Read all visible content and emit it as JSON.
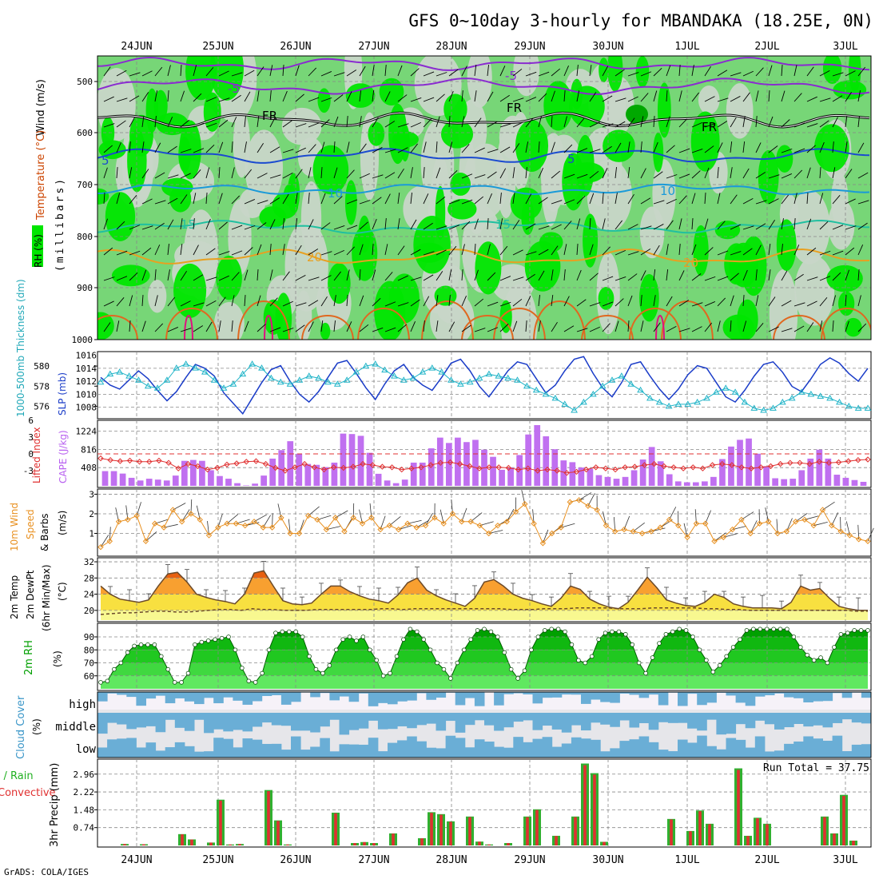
{
  "title": "GFS 0~10day 3-hourly for MBANDAKA (18.25E, 0N)",
  "credit": "GrADS: COLA/IGES",
  "dates": [
    "24JUN",
    "25JUN",
    "26JUN",
    "27JUN",
    "28JUN",
    "29JUN",
    "30JUN",
    "1JUL",
    "2JUL",
    "3JUL"
  ],
  "colors": {
    "rh_dark": "#00e600",
    "rh_mid": "#77d677",
    "rh_light": "#c8d6c8",
    "frame": "#000000",
    "grid": "#888888"
  },
  "panels": {
    "upper": {
      "label_wind": "Wind (m/s)",
      "label_temp": "Temperature (°C)",
      "label_rh": "RH (%)",
      "label_mb": "(millibars)",
      "y_ticks": [
        "500",
        "600",
        "700",
        "800",
        "900",
        "1000"
      ]
    },
    "thickness": {
      "label_thk": "1000-500mb Thickness (dm)",
      "label_slp": "SLP (mb)",
      "thk_ticks": [
        "580",
        "578",
        "576"
      ],
      "slp_ticks": [
        "1016",
        "1014",
        "1012",
        "1010",
        "1008"
      ]
    },
    "cape": {
      "label_li": "Lifted Index",
      "label_cape": "CAPE (J/kg)",
      "li_ticks": [
        "-3",
        "0",
        "3",
        "6"
      ],
      "cape_ticks": [
        "1224",
        "816",
        "408"
      ]
    },
    "wind10": {
      "label1": "10m Wind",
      "label2": "Speed",
      "label3": "& Barbs",
      "label_units": "(m/s)",
      "ticks": [
        "3",
        "2",
        "1"
      ]
    },
    "temp2m": {
      "label1": "2m Temp",
      "label2": "2m DewPt",
      "label3": "(6hr Min/Max)",
      "label_units": "(°C)",
      "ticks": [
        "32",
        "28",
        "24",
        "20"
      ]
    },
    "rh2m": {
      "label": "2m RH",
      "label_units": "(%)",
      "ticks": [
        "90",
        "80",
        "70",
        "60"
      ]
    },
    "cloud": {
      "label": "Cloud Cover",
      "label_units": "(%)",
      "levels": [
        "high",
        "middle",
        "low"
      ]
    },
    "precip": {
      "label1": "Total / Rain",
      "label2": "Convective",
      "label_units": "3hr Precip (mm)",
      "ticks": [
        "2.96",
        "2.22",
        "1.48",
        "0.74"
      ],
      "run_total": "Run Total = 37.75"
    }
  },
  "chart_data": [
    {
      "type": "line",
      "title": "1000-500mb Thickness (dm) / SLP (mb)",
      "series": [
        {
          "name": "SLP (mb)",
          "values": [
            1012.6,
            1011.4,
            1010.8,
            1012.2,
            1013.6,
            1012.4,
            1010.6,
            1009.0,
            1010.4,
            1012.6,
            1014.6,
            1014.0,
            1012.8,
            1010.2,
            1008.6,
            1007.0,
            1009.4,
            1011.8,
            1013.8,
            1014.4,
            1012.0,
            1010.0,
            1008.8,
            1010.4,
            1012.6,
            1014.8,
            1015.2,
            1013.2,
            1011.0,
            1009.2,
            1011.6,
            1013.6,
            1014.6,
            1012.6,
            1011.4,
            1010.6,
            1012.6,
            1014.8,
            1015.4,
            1013.6,
            1011.2,
            1009.6,
            1011.6,
            1013.6,
            1015.0,
            1014.6,
            1012.4,
            1010.2,
            1011.4,
            1013.6,
            1015.4,
            1015.8,
            1013.2,
            1011.0,
            1009.6,
            1011.8,
            1014.6,
            1015.0,
            1012.8,
            1010.8,
            1009.2,
            1010.8,
            1013.0,
            1014.4,
            1014.0,
            1011.8,
            1009.6,
            1008.8,
            1010.6,
            1012.8,
            1014.6,
            1015.0,
            1013.4,
            1011.2,
            1010.4,
            1012.4,
            1014.6,
            1015.6,
            1014.8,
            1013.2,
            1012.0,
            1014.0
          ]
        },
        {
          "name": "1000-500mb Thickness (dm)",
          "values": [
            578.4,
            579.2,
            579.4,
            579.0,
            578.6,
            578.0,
            577.8,
            578.6,
            579.8,
            580.2,
            579.8,
            579.4,
            578.6,
            577.8,
            578.2,
            579.2,
            580.2,
            579.8,
            578.8,
            578.4,
            578.2,
            578.6,
            579.0,
            578.8,
            578.4,
            578.2,
            578.6,
            579.4,
            580.0,
            580.2,
            579.6,
            579.0,
            578.6,
            578.8,
            579.4,
            579.8,
            579.4,
            578.6,
            578.2,
            578.4,
            578.8,
            579.2,
            579.0,
            578.8,
            578.6,
            578.0,
            577.6,
            577.2,
            576.8,
            576.2,
            575.6,
            576.4,
            577.2,
            578.0,
            578.6,
            579.0,
            578.2,
            577.6,
            576.8,
            576.4,
            576.0,
            576.2,
            576.2,
            576.4,
            576.8,
            577.4,
            577.8,
            577.4,
            576.4,
            575.8,
            575.6,
            575.8,
            576.4,
            576.8,
            577.4,
            577.2,
            577.0,
            576.8,
            576.4,
            576.0,
            575.8,
            575.8
          ]
        }
      ]
    },
    {
      "type": "bar",
      "title": "CAPE (J/kg) / Lifted Index",
      "series": [
        {
          "name": "CAPE (J/kg)",
          "values": [
            330,
            330,
            275,
            180,
            120,
            160,
            140,
            120,
            230,
            560,
            580,
            560,
            350,
            220,
            160,
            60,
            10,
            50,
            230,
            610,
            800,
            1000,
            720,
            490,
            470,
            420,
            520,
            1170,
            1160,
            1120,
            740,
            270,
            120,
            60,
            140,
            520,
            520,
            840,
            1080,
            960,
            1080,
            980,
            1030,
            810,
            650,
            360,
            410,
            690,
            1150,
            1360,
            1110,
            820,
            570,
            530,
            410,
            380,
            240,
            200,
            160,
            200,
            350,
            590,
            870,
            550,
            260,
            100,
            80,
            80,
            100,
            200,
            600,
            880,
            1030,
            1060,
            720,
            440,
            170,
            150,
            160,
            350,
            610,
            810,
            610,
            250,
            180,
            130,
            90
          ]
        },
        {
          "name": "Lifted Index",
          "values": [
            -0.8,
            -1.1,
            -1.3,
            -1.2,
            -1.4,
            -1.4,
            -1.2,
            -1.6,
            -2.6,
            -1.8,
            -2.2,
            -2.8,
            -2.5,
            -1.9,
            -1.7,
            -1.4,
            -1.3,
            -1.8,
            -2.5,
            -3.0,
            -2.4,
            -1.8,
            -2.4,
            -2.8,
            -2.4,
            -2.5,
            -2.3,
            -1.8,
            -2.0,
            -2.3,
            -2.4,
            -2.8,
            -2.6,
            -2.4,
            -2.0,
            -1.6,
            -1.5,
            -1.8,
            -2.2,
            -2.6,
            -2.4,
            -2.4,
            -2.5,
            -2.8,
            -2.6,
            -3.0,
            -2.8,
            -3.0,
            -3.4,
            -3.2,
            -2.8,
            -2.4,
            -2.6,
            -2.8,
            -2.4,
            -2.3,
            -2.0,
            -1.8,
            -2.2,
            -2.4,
            -2.6,
            -2.4,
            -2.6,
            -2.0,
            -1.8,
            -2.0,
            -2.4,
            -2.6,
            -2.4,
            -2.2,
            -1.8,
            -1.6,
            -1.6,
            -1.8,
            -1.4,
            -1.6,
            -1.5,
            -1.3,
            -1.1,
            -1.0
          ]
        }
      ]
    },
    {
      "type": "line",
      "title": "10m Wind Speed (m/s)",
      "series": [
        {
          "name": "10m Wind Speed",
          "values": [
            0.3,
            0.6,
            1.6,
            1.7,
            1.9,
            0.6,
            1.5,
            1.3,
            2.2,
            1.6,
            2.0,
            1.7,
            0.9,
            1.3,
            1.5,
            1.5,
            1.4,
            1.6,
            1.3,
            1.3,
            1.8,
            1.0,
            1.0,
            1.9,
            1.7,
            1.2,
            1.8,
            1.1,
            1.8,
            1.5,
            1.8,
            1.2,
            1.4,
            1.2,
            1.5,
            1.3,
            1.4,
            1.8,
            1.5,
            2.0,
            1.6,
            1.6,
            1.4,
            1.0,
            1.4,
            1.6,
            2.1,
            2.5,
            1.5,
            0.5,
            1.0,
            1.3,
            2.6,
            2.7,
            2.4,
            2.2,
            1.4,
            1.1,
            1.2,
            1.1,
            1.0,
            1.1,
            1.3,
            1.7,
            1.4,
            0.8,
            1.5,
            1.5,
            0.6,
            0.8,
            1.2,
            1.7,
            1.0,
            1.5,
            1.6,
            1.0,
            1.1,
            1.6,
            1.7,
            1.4,
            2.2,
            1.4,
            1.1,
            0.9,
            0.7,
            0.6
          ]
        }
      ]
    },
    {
      "type": "area",
      "title": "2m Temp / 2m DewPt (°C)",
      "series": [
        {
          "name": "2m Temp",
          "values": [
            26.0,
            24.0,
            22.8,
            22.4,
            22.0,
            22.6,
            26.0,
            29.0,
            29.4,
            27.0,
            24.0,
            23.2,
            22.6,
            22.2,
            21.6,
            24.0,
            29.2,
            29.8,
            26.0,
            22.4,
            21.6,
            21.4,
            21.8,
            24.0,
            26.0,
            26.0,
            24.6,
            23.6,
            22.8,
            22.4,
            21.8,
            23.8,
            26.8,
            28.0,
            25.0,
            23.6,
            22.6,
            21.8,
            21.0,
            23.0,
            27.0,
            27.6,
            26.0,
            24.0,
            23.0,
            22.4,
            21.6,
            21.0,
            23.0,
            26.0,
            25.2,
            22.8,
            21.6,
            20.8,
            20.4,
            22.0,
            25.0,
            28.2,
            25.6,
            22.6,
            21.8,
            21.2,
            21.0,
            22.0,
            24.0,
            23.2,
            21.6,
            21.0,
            20.6,
            20.6,
            20.6,
            20.4,
            22.0,
            26.0,
            25.0,
            25.4,
            23.0,
            21.0,
            20.4,
            20.0,
            20.0
          ]
        },
        {
          "name": "2m DewPt",
          "values": [
            19.0,
            19.2,
            19.4,
            19.4,
            19.6,
            19.8,
            19.8,
            19.6,
            19.6,
            19.8,
            20.0,
            20.2,
            20.2,
            20.0,
            20.4,
            20.2,
            20.2,
            20.0,
            20.0,
            20.0,
            20.2,
            20.2,
            20.2,
            20.2,
            20.2,
            20.2,
            20.4,
            20.4,
            20.2,
            20.4,
            20.4,
            20.4,
            20.4,
            20.4,
            20.4,
            20.4,
            20.4,
            20.4,
            20.2,
            20.2,
            20.2,
            20.4,
            20.4,
            20.4,
            20.6,
            20.6,
            20.6,
            20.6,
            20.4,
            20.4,
            20.4,
            20.6,
            20.6,
            20.6,
            20.6,
            20.6,
            20.4,
            20.4,
            20.2,
            20.2,
            20.0,
            20.0,
            20.0,
            20.0,
            20.0,
            20.0,
            20.0,
            20.0,
            20.0,
            20.0,
            19.8,
            19.8
          ]
        }
      ]
    },
    {
      "type": "area",
      "title": "2m RH (%)",
      "series": [
        {
          "name": "2m RH",
          "values": [
            55,
            56,
            65,
            70,
            78,
            83,
            84,
            84,
            84,
            75,
            65,
            55,
            55,
            62,
            84,
            86,
            87,
            88,
            89,
            90,
            80,
            66,
            56,
            55,
            62,
            80,
            93,
            94,
            94,
            94,
            90,
            75,
            65,
            62,
            68,
            80,
            88,
            90,
            87,
            90,
            80,
            72,
            60,
            62,
            75,
            88,
            96,
            94,
            88,
            80,
            70,
            65,
            58,
            70,
            80,
            88,
            95,
            96,
            94,
            90,
            78,
            65,
            58,
            64,
            80,
            90,
            95,
            96,
            96,
            94,
            84,
            72,
            70,
            75,
            88,
            93,
            94,
            94,
            92,
            84,
            70,
            62,
            74,
            85,
            92,
            94,
            96,
            95,
            90,
            80,
            72,
            63,
            68,
            75,
            82,
            88,
            95,
            96,
            96,
            96,
            96,
            96,
            96,
            90,
            82,
            76,
            72,
            74,
            70,
            82,
            92,
            93,
            95,
            95,
            95
          ]
        }
      ]
    },
    {
      "type": "bar",
      "title": "3hr Precip (mm)",
      "series": [
        {
          "name": "Total / Rain",
          "values": [
            0,
            0,
            0.06,
            0,
            0.05,
            0,
            0,
            0,
            0.47,
            0.25,
            0,
            0.12,
            1.9,
            0.04,
            0.06,
            0,
            0,
            2.3,
            1.04,
            0.04,
            0,
            0,
            0,
            0,
            1.36,
            0,
            0.1,
            0.14,
            0.1,
            0,
            0.5,
            0,
            0,
            0.3,
            1.38,
            1.3,
            1.0,
            0,
            1.2,
            0.16,
            0.04,
            0,
            0.1,
            0,
            1.2,
            1.5,
            0,
            0.4,
            0,
            1.2,
            3.4,
            3.0,
            0.15,
            0,
            0,
            0,
            0,
            0,
            0,
            1.1,
            0,
            0.6,
            1.45,
            0.9,
            0,
            0,
            3.2,
            0.4,
            1.15,
            0.9,
            0,
            0,
            0,
            0,
            0,
            1.2,
            0.5,
            2.1,
            0.2,
            0
          ]
        }
      ]
    }
  ]
}
